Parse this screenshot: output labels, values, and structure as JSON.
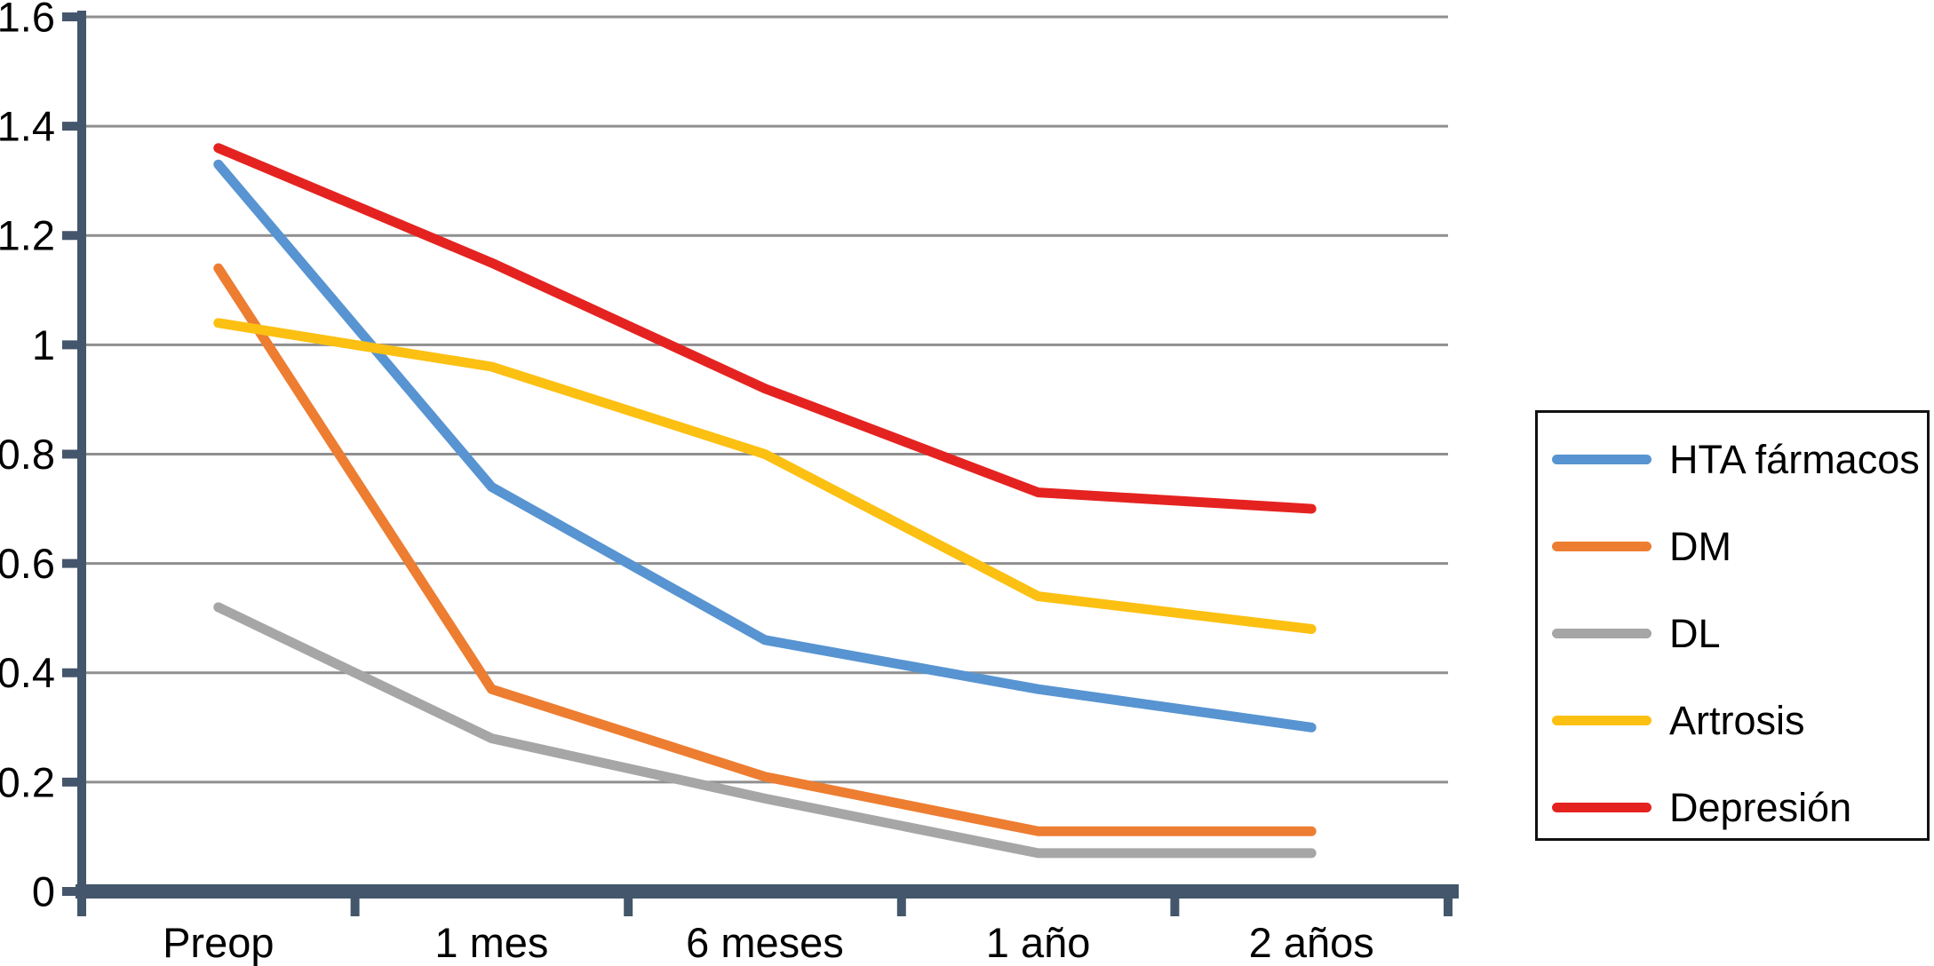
{
  "chart_data": {
    "type": "line",
    "title": "",
    "xlabel": "",
    "ylabel": "",
    "categories": [
      "Preop",
      "1 mes",
      "6 meses",
      "1 año",
      "2 años"
    ],
    "series": [
      {
        "name": "HTA fármacos",
        "color": "#5794D1",
        "values": [
          1.33,
          0.74,
          0.46,
          0.37,
          0.3
        ]
      },
      {
        "name": "DM",
        "color": "#ED7D31",
        "values": [
          1.14,
          0.37,
          0.21,
          0.11,
          0.11
        ]
      },
      {
        "name": "DL",
        "color": "#A6A6A6",
        "values": [
          0.52,
          0.28,
          0.17,
          0.07,
          0.07
        ]
      },
      {
        "name": "Artrosis",
        "color": "#FCC012",
        "values": [
          1.04,
          0.96,
          0.8,
          0.54,
          0.48
        ]
      },
      {
        "name": "Depresión",
        "color": "#E42320",
        "values": [
          1.36,
          1.15,
          0.92,
          0.73,
          0.7
        ]
      }
    ],
    "ylim": [
      0,
      1.6
    ],
    "ytick_step": 0.2,
    "ytick_labels": [
      "0",
      "0.2",
      "0.4",
      "0.6",
      "0.8",
      "1",
      "1.2",
      "1.4",
      "1.6"
    ],
    "grid": true,
    "grid_color": "#8F8F8F",
    "axis_color": "#44566B",
    "legend_position": "right",
    "legend_border_color": "#111111"
  }
}
